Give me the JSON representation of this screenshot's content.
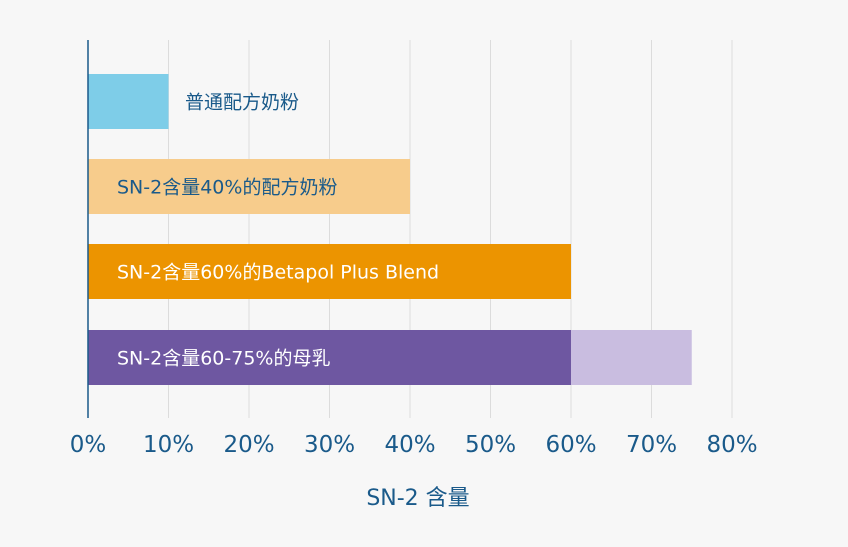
{
  "chart_data": {
    "type": "bar",
    "orientation": "horizontal",
    "xlabel": "SN-2 含量",
    "xlim": [
      0,
      80
    ],
    "xticks": [
      0,
      10,
      20,
      30,
      40,
      50,
      60,
      70,
      80
    ],
    "xtick_labels": [
      "0%",
      "10%",
      "20%",
      "30%",
      "40%",
      "50%",
      "60%",
      "70%",
      "80%"
    ],
    "grid": true,
    "categories": [
      "普通配方奶粉",
      "SN-2含量40%的配方奶粉",
      "SN-2含量60%的Betapol Plus Blend",
      "SN-2含量60-75%的母乳"
    ],
    "series": [
      {
        "values": [
          10,
          40,
          60,
          60
        ]
      },
      {
        "values": [
          0,
          0,
          0,
          15
        ]
      }
    ],
    "bar_colors": [
      [
        "#7ecde8",
        null
      ],
      [
        "#f7cc8c",
        null
      ],
      [
        "#ec9400",
        null
      ],
      [
        "#6e57a1",
        "#c9bde0"
      ]
    ],
    "label_colors": [
      "#1a5a8a",
      "#1a5a8a",
      "#ffffff",
      "#ffffff"
    ],
    "axis_color": "#1a5a8a",
    "grid_color": "#dcdcdc"
  }
}
